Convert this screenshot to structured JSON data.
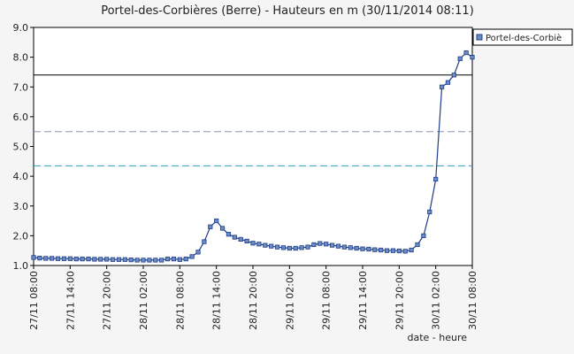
{
  "chart_data": {
    "type": "line",
    "title": "Portel-des-Corbières (Berre) - Hauteurs en m (30/11/2014 08:11)",
    "x_label": "date - heure",
    "x": [
      "27/11 08:00",
      "27/11 09:00",
      "27/11 10:00",
      "27/11 11:00",
      "27/11 12:00",
      "27/11 13:00",
      "27/11 14:00",
      "27/11 15:00",
      "27/11 16:00",
      "27/11 17:00",
      "27/11 18:00",
      "27/11 19:00",
      "27/11 20:00",
      "27/11 21:00",
      "27/11 22:00",
      "27/11 23:00",
      "28/11 00:00",
      "28/11 01:00",
      "28/11 02:00",
      "28/11 03:00",
      "28/11 04:00",
      "28/11 05:00",
      "28/11 06:00",
      "28/11 07:00",
      "28/11 08:00",
      "28/11 09:00",
      "28/11 10:00",
      "28/11 11:00",
      "28/11 12:00",
      "28/11 13:00",
      "28/11 14:00",
      "28/11 15:00",
      "28/11 16:00",
      "28/11 17:00",
      "28/11 18:00",
      "28/11 19:00",
      "28/11 20:00",
      "28/11 21:00",
      "28/11 22:00",
      "28/11 23:00",
      "29/11 00:00",
      "29/11 01:00",
      "29/11 02:00",
      "29/11 03:00",
      "29/11 04:00",
      "29/11 05:00",
      "29/11 06:00",
      "29/11 07:00",
      "29/11 08:00",
      "29/11 09:00",
      "29/11 10:00",
      "29/11 11:00",
      "29/11 12:00",
      "29/11 13:00",
      "29/11 14:00",
      "29/11 15:00",
      "29/11 16:00",
      "29/11 17:00",
      "29/11 18:00",
      "29/11 19:00",
      "29/11 20:00",
      "29/11 21:00",
      "29/11 22:00",
      "29/11 23:00",
      "30/11 00:00",
      "30/11 01:00",
      "30/11 02:00",
      "30/11 03:00",
      "30/11 04:00",
      "30/11 05:00",
      "30/11 06:00",
      "30/11 07:00",
      "30/11 08:00"
    ],
    "series": [
      {
        "name": "Portel-des-Corbiè",
        "color": "#1f3c88",
        "marker_color": "#6b8cc4",
        "values": [
          1.27,
          1.25,
          1.24,
          1.24,
          1.23,
          1.23,
          1.23,
          1.22,
          1.22,
          1.22,
          1.21,
          1.21,
          1.21,
          1.2,
          1.2,
          1.2,
          1.19,
          1.18,
          1.18,
          1.18,
          1.18,
          1.18,
          1.22,
          1.22,
          1.2,
          1.22,
          1.3,
          1.45,
          1.8,
          2.3,
          2.5,
          2.25,
          2.05,
          1.95,
          1.88,
          1.82,
          1.75,
          1.72,
          1.68,
          1.65,
          1.62,
          1.6,
          1.58,
          1.58,
          1.6,
          1.62,
          1.7,
          1.74,
          1.72,
          1.68,
          1.65,
          1.62,
          1.6,
          1.58,
          1.56,
          1.55,
          1.53,
          1.52,
          1.5,
          1.5,
          1.49,
          1.48,
          1.52,
          1.7,
          2.0,
          2.8,
          3.9,
          7.0,
          7.15,
          7.4,
          7.95,
          8.15,
          8.0
        ]
      }
    ],
    "xlim": [
      "27/11 08:00",
      "30/11 08:00"
    ],
    "xticks": [
      "27/11 08:00",
      "27/11 14:00",
      "27/11 20:00",
      "28/11 02:00",
      "28/11 08:00",
      "28/11 14:00",
      "28/11 20:00",
      "29/11 02:00",
      "29/11 08:00",
      "29/11 14:00",
      "29/11 20:00",
      "30/11 02:00",
      "30/11 08:00"
    ],
    "ylim": [
      1,
      9
    ],
    "yticks": [
      {
        "value": 1,
        "label": "1.0"
      },
      {
        "value": 2,
        "label": "2.0"
      },
      {
        "value": 3,
        "label": "3.0"
      },
      {
        "value": 4,
        "label": "4.0"
      },
      {
        "value": 5,
        "label": "5.0"
      },
      {
        "value": 6,
        "label": "6.0"
      },
      {
        "value": 7,
        "label": "7.0"
      },
      {
        "value": 8,
        "label": "8.0"
      },
      {
        "value": 9,
        "label": "9.0"
      }
    ],
    "reference_lines": [
      {
        "value": 7.4,
        "color": "#000000",
        "dash": "solid"
      },
      {
        "value": 5.5,
        "color": "#8a93b0",
        "dash": "dashed"
      },
      {
        "value": 4.35,
        "color": "#2a9fb8",
        "dash": "dashed"
      }
    ],
    "legend": "top-right"
  }
}
